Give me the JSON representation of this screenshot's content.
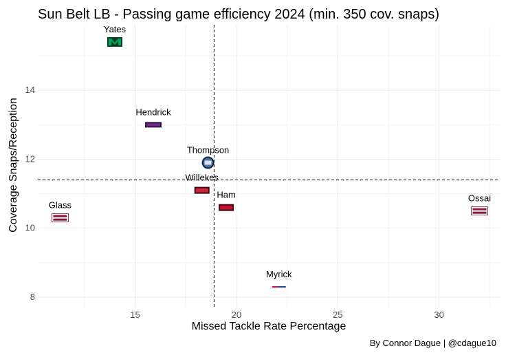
{
  "chart_data": {
    "type": "scatter",
    "title": "Sun Belt LB - Passing game efficiency 2024 (min. 350 cov. snaps)",
    "xlabel": "Missed Tackle Rate Percentage",
    "ylabel": "Coverage Snaps/Reception",
    "caption": "By Connor Dague | @cdague10",
    "xlim": [
      10.2,
      33.0
    ],
    "ylim": [
      7.7,
      15.9
    ],
    "x_ticks": [
      15,
      20,
      25,
      30
    ],
    "y_ticks": [
      8,
      10,
      12,
      14
    ],
    "grid": true,
    "reference_lines": {
      "vertical_x": 18.9,
      "horizontal_y": 11.4
    },
    "points": [
      {
        "label": "Yates",
        "x": 14.0,
        "y": 15.4,
        "color": "#00a35a",
        "logo_text": "M"
      },
      {
        "label": "Hendrick",
        "x": 15.9,
        "y": 13.0,
        "color": "#6b2c91",
        "logo_text": "JMU"
      },
      {
        "label": "Thompson",
        "x": 18.6,
        "y": 11.9,
        "color": "#4a6f9a",
        "logo_text": "ODU"
      },
      {
        "label": "Willekes",
        "x": 18.3,
        "y": 11.1,
        "color": "#d2223a",
        "logo_text": "ASU"
      },
      {
        "label": "Ham",
        "x": 19.5,
        "y": 10.6,
        "color": "#c8102e",
        "logo_text": "ASU"
      },
      {
        "label": "Glass",
        "x": 11.3,
        "y": 10.3,
        "color": "#8a1538",
        "logo_text": "TEXAS STATE"
      },
      {
        "label": "Ossai",
        "x": 32.0,
        "y": 10.5,
        "color": "#8a1538",
        "logo_text": "TEXAS STATE"
      },
      {
        "label": "Myrick",
        "x": 22.1,
        "y": 8.3,
        "color": "#2a3f8f",
        "logo_text": "USA"
      }
    ]
  }
}
